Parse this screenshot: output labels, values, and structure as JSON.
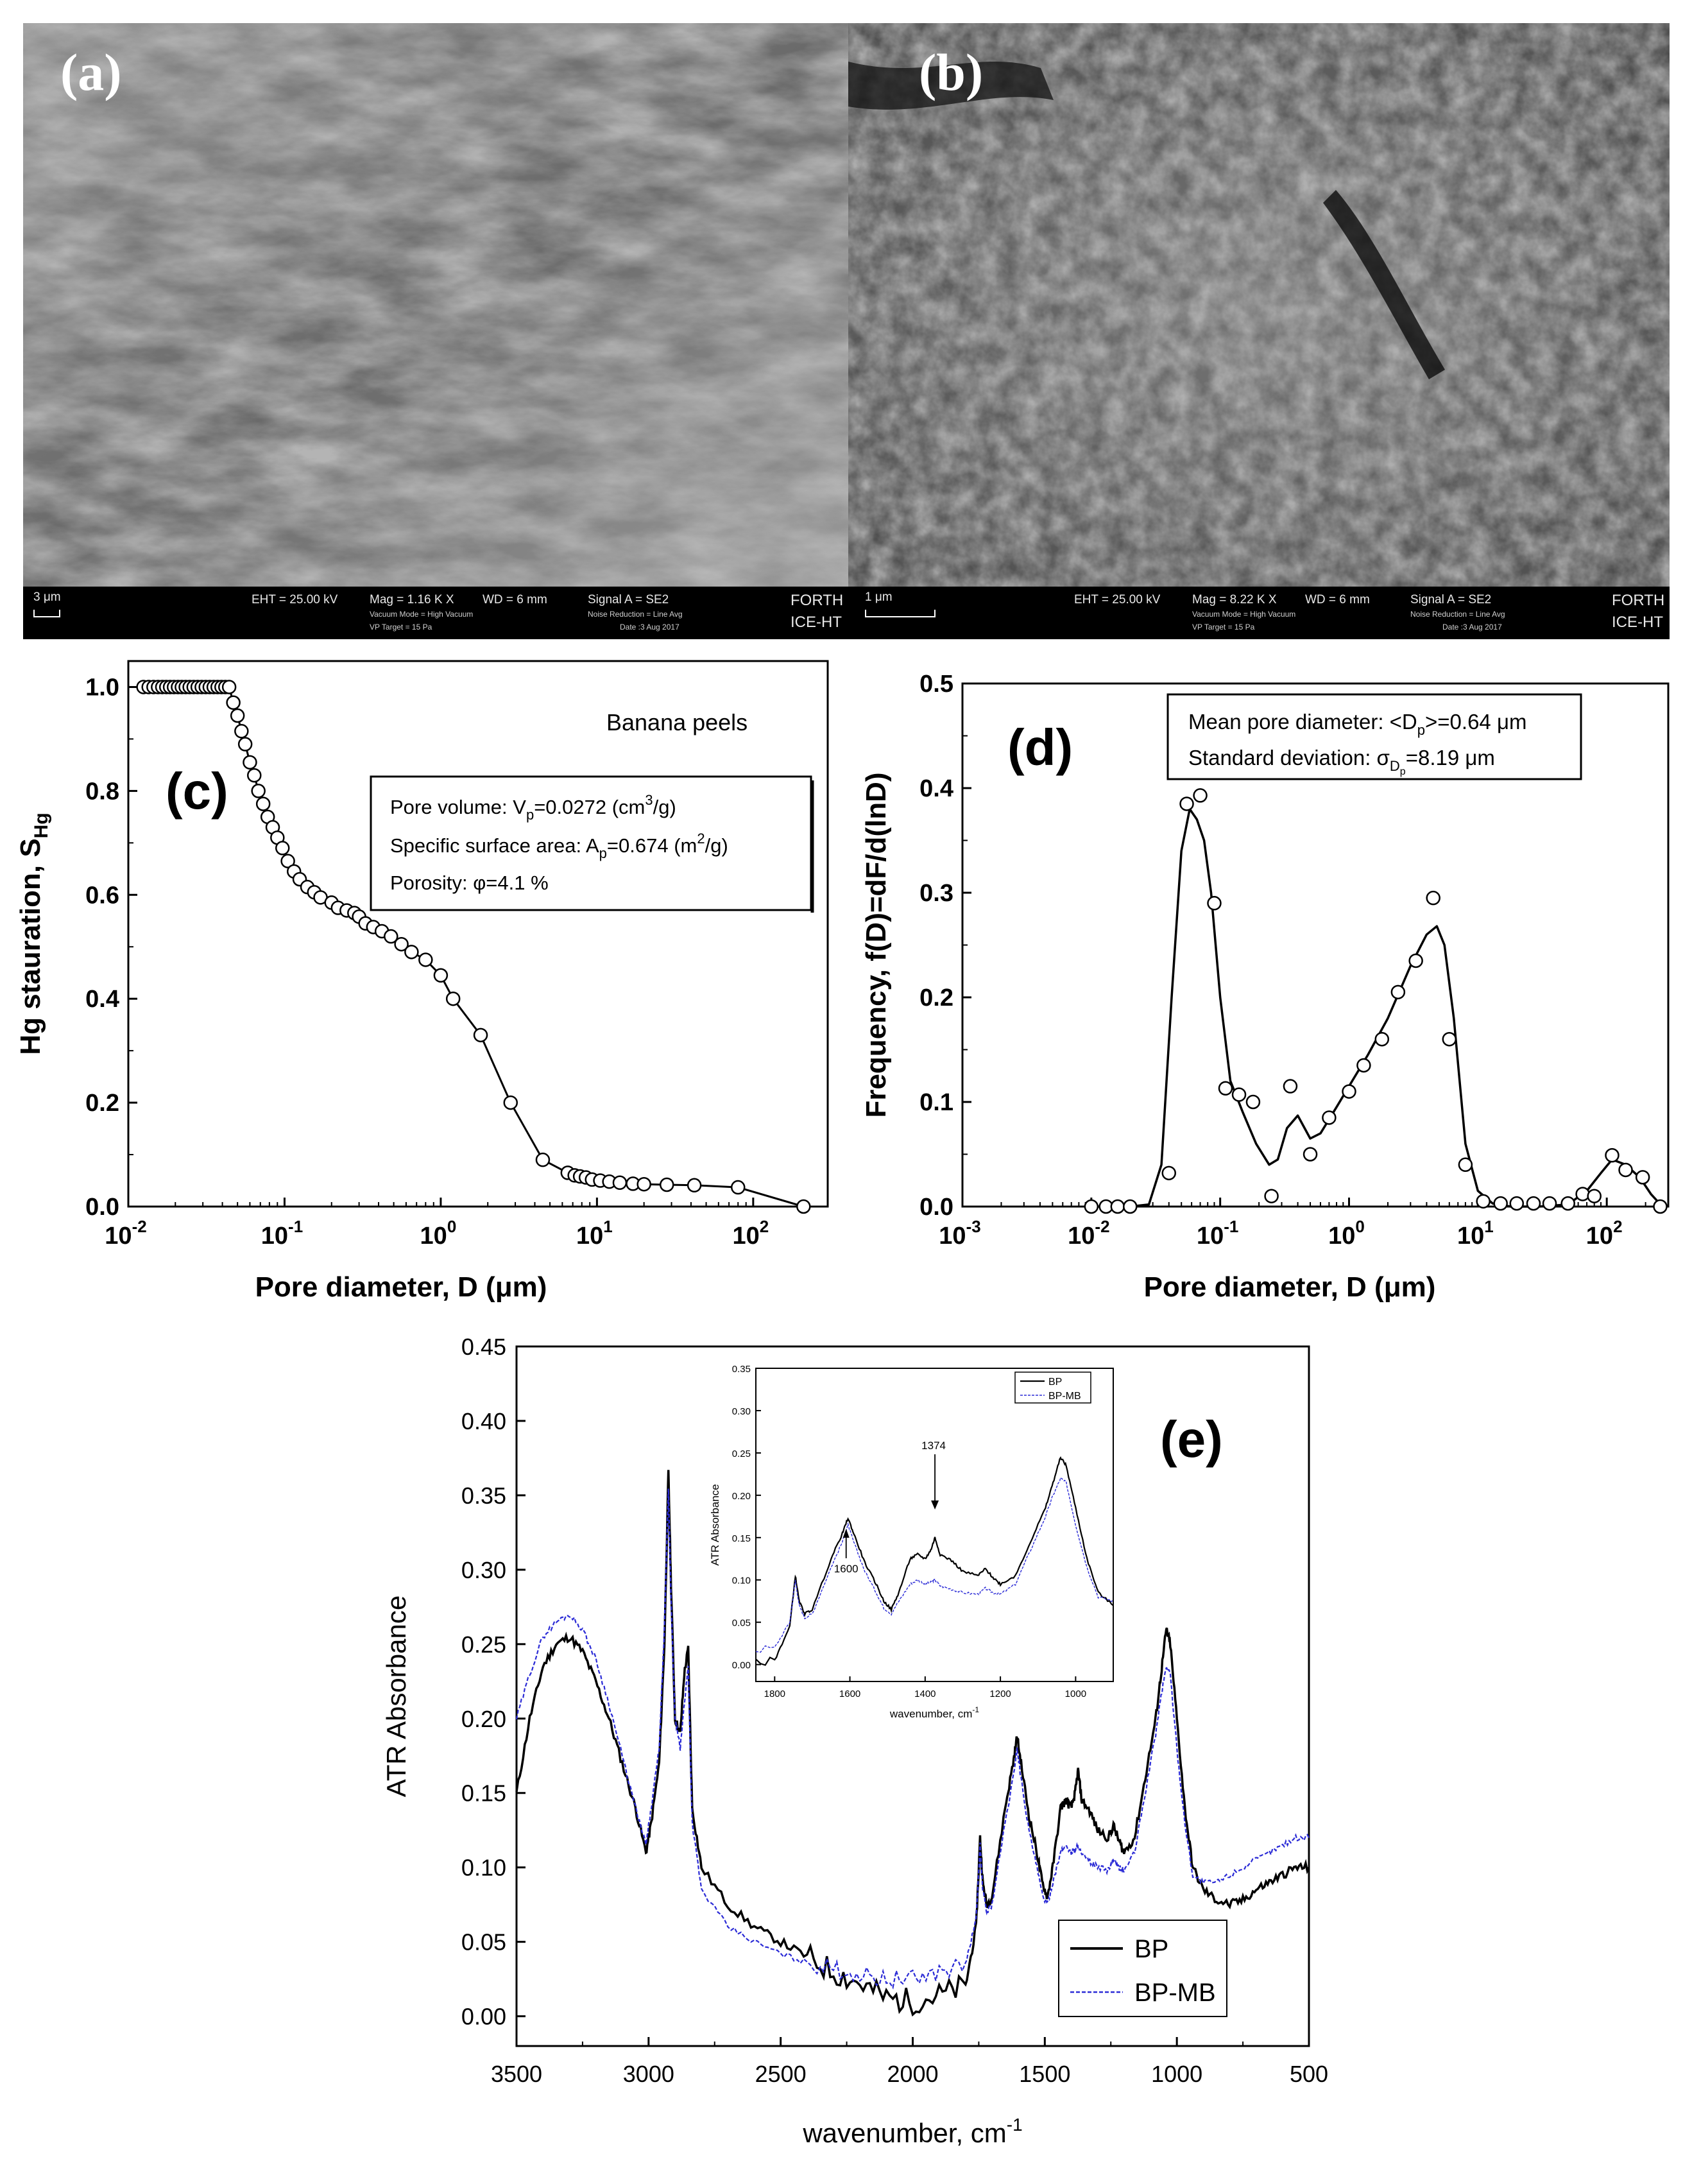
{
  "panels": {
    "a": {
      "label": "(a)",
      "scale": "3 μm",
      "eht": "EHT = 25.00 kV",
      "mag": "Mag = 1.16 K X",
      "wd": "WD = 6 mm",
      "signal": "Signal A = SE2",
      "vacuum": "Vacuum Mode = High Vacuum",
      "vp": "VP Target = 15 Pa",
      "noise": "Noise Reduction = Line Avg",
      "date": "Date :3 Aug 2017",
      "inst1": "FORTH",
      "inst2": "ICE-HT"
    },
    "b": {
      "label": "(b)",
      "scale": "1 μm",
      "eht": "EHT = 25.00 kV",
      "mag": "Mag = 8.22 K X",
      "wd": "WD = 6 mm",
      "signal": "Signal A = SE2",
      "vacuum": "Vacuum Mode = High Vacuum",
      "vp": "VP Target = 15 Pa",
      "noise": "Noise Reduction = Line Avg",
      "date": "Date :3 Aug 2017",
      "inst1": "FORTH",
      "inst2": "ICE-HT"
    }
  },
  "chart_data": [
    {
      "id": "c",
      "type": "line",
      "panel_label": "(c)",
      "xlabel": "Pore diameter, D (μm)",
      "ylabel_main": "Hg stauration, S",
      "ylabel_sub": "Hg",
      "xscale": "log",
      "xlim": [
        0.01,
        300
      ],
      "ylim": [
        0,
        1.05
      ],
      "xticks": [
        {
          "v": 0.01,
          "base": "10",
          "exp": "-2"
        },
        {
          "v": 0.1,
          "base": "10",
          "exp": "-1"
        },
        {
          "v": 1,
          "base": "10",
          "exp": "0"
        },
        {
          "v": 10,
          "base": "10",
          "exp": "1"
        },
        {
          "v": 100,
          "base": "10",
          "exp": "2"
        }
      ],
      "yticks": [
        "0.0",
        "0.2",
        "0.4",
        "0.6",
        "0.8",
        "1.0"
      ],
      "sample_label": "Banana peels",
      "legend": {
        "l1_pre": "Pore volume: V",
        "l1_sub": "p",
        "l1_mid": "=0.0272 (cm",
        "l1_sup": "3",
        "l1_post": "/g)",
        "l2_pre": "Specific surface area: A",
        "l2_sub": "p",
        "l2_mid": "=0.674 (m",
        "l2_sup": "2",
        "l2_post": "/g)",
        "l3": "Porosity: φ=4.1 %"
      },
      "x": [
        0.0125,
        0.0135,
        0.0145,
        0.0155,
        0.0165,
        0.0175,
        0.0185,
        0.0196,
        0.0208,
        0.022,
        0.0233,
        0.0247,
        0.0262,
        0.0278,
        0.0295,
        0.0313,
        0.0332,
        0.0352,
        0.0373,
        0.0395,
        0.0418,
        0.0442,
        0.047,
        0.05,
        0.053,
        0.056,
        0.06,
        0.064,
        0.068,
        0.073,
        0.078,
        0.084,
        0.09,
        0.097,
        0.105,
        0.115,
        0.125,
        0.14,
        0.155,
        0.17,
        0.2,
        0.22,
        0.25,
        0.28,
        0.3,
        0.33,
        0.37,
        0.42,
        0.48,
        0.56,
        0.65,
        0.8,
        1.0,
        1.2,
        1.8,
        2.8,
        4.5,
        6.5,
        7.2,
        7.8,
        8.5,
        9.3,
        10.5,
        12,
        14,
        17,
        20,
        28,
        42,
        80,
        210
      ],
      "y": [
        1.0,
        1.0,
        1.0,
        1.0,
        1.0,
        1.0,
        1.0,
        1.0,
        1.0,
        1.0,
        1.0,
        1.0,
        1.0,
        1.0,
        1.0,
        1.0,
        1.0,
        1.0,
        1.0,
        1.0,
        1.0,
        1.0,
        0.97,
        0.945,
        0.915,
        0.89,
        0.855,
        0.83,
        0.8,
        0.775,
        0.75,
        0.73,
        0.71,
        0.69,
        0.665,
        0.645,
        0.63,
        0.615,
        0.605,
        0.595,
        0.585,
        0.575,
        0.57,
        0.565,
        0.558,
        0.545,
        0.538,
        0.53,
        0.52,
        0.505,
        0.49,
        0.475,
        0.445,
        0.4,
        0.33,
        0.2,
        0.09,
        0.065,
        0.06,
        0.058,
        0.056,
        0.052,
        0.05,
        0.048,
        0.046,
        0.044,
        0.043,
        0.042,
        0.041,
        0.037,
        0.0
      ]
    },
    {
      "id": "d",
      "type": "line",
      "panel_label": "(d)",
      "xlabel": "Pore diameter, D (μm)",
      "ylabel": "Frequency, f(D)=dF/d(lnD)",
      "xscale": "log",
      "xlim": [
        0.001,
        300
      ],
      "ylim": [
        0,
        0.5
      ],
      "xticks": [
        {
          "v": 0.001,
          "base": "10",
          "exp": "-3"
        },
        {
          "v": 0.01,
          "base": "10",
          "exp": "-2"
        },
        {
          "v": 0.1,
          "base": "10",
          "exp": "-1"
        },
        {
          "v": 1,
          "base": "10",
          "exp": "0"
        },
        {
          "v": 10,
          "base": "10",
          "exp": "1"
        },
        {
          "v": 100,
          "base": "10",
          "exp": "2"
        }
      ],
      "yticks": [
        "0.0",
        "0.1",
        "0.2",
        "0.3",
        "0.4",
        "0.5"
      ],
      "legend": {
        "l1_pre": "Mean pore diameter: <D",
        "l1_sub": "p",
        "l1_post": ">=0.64 μm",
        "l2_pre": "Standard deviation:   σ",
        "l2_sub": "D",
        "l2_subsub": "p",
        "l2_post": "=8.19 μm"
      },
      "points": {
        "x": [
          0.01,
          0.013,
          0.016,
          0.02,
          0.04,
          0.055,
          0.07,
          0.09,
          0.11,
          0.14,
          0.18,
          0.25,
          0.35,
          0.5,
          0.7,
          1.0,
          1.3,
          1.8,
          2.4,
          3.3,
          4.5,
          6.0,
          8.0,
          11,
          15,
          20,
          27,
          36,
          50,
          65,
          80,
          110,
          140,
          190,
          260
        ],
        "y": [
          0.0,
          0.0,
          0.0,
          0.0,
          0.032,
          0.385,
          0.393,
          0.29,
          0.113,
          0.107,
          0.1,
          0.01,
          0.115,
          0.05,
          0.085,
          0.11,
          0.135,
          0.16,
          0.205,
          0.235,
          0.295,
          0.16,
          0.04,
          0.005,
          0.003,
          0.003,
          0.003,
          0.003,
          0.003,
          0.012,
          0.01,
          0.049,
          0.035,
          0.028,
          0.0
        ]
      },
      "curve": {
        "x": [
          0.01,
          0.02,
          0.028,
          0.035,
          0.042,
          0.05,
          0.058,
          0.066,
          0.075,
          0.085,
          0.1,
          0.12,
          0.15,
          0.19,
          0.24,
          0.28,
          0.33,
          0.4,
          0.5,
          0.6,
          0.8,
          1.0,
          1.4,
          2.0,
          3.0,
          4.0,
          4.8,
          5.5,
          6.5,
          8.0,
          10,
          13,
          18,
          30,
          50,
          70,
          90,
          110,
          140,
          180,
          220,
          270
        ],
        "y": [
          0.0,
          0.0,
          0.002,
          0.04,
          0.2,
          0.34,
          0.38,
          0.37,
          0.35,
          0.3,
          0.2,
          0.12,
          0.09,
          0.06,
          0.04,
          0.045,
          0.075,
          0.087,
          0.065,
          0.07,
          0.095,
          0.115,
          0.145,
          0.18,
          0.23,
          0.26,
          0.268,
          0.25,
          0.18,
          0.06,
          0.015,
          0.003,
          0.0,
          0.0,
          0.002,
          0.015,
          0.032,
          0.045,
          0.04,
          0.028,
          0.012,
          0.0
        ]
      }
    },
    {
      "id": "e",
      "type": "line",
      "panel_label": "(e)",
      "xlabel": "wavenumber, cm",
      "xlabel_sup": "-1",
      "ylabel": "ATR Absorbance",
      "xlim": [
        3500,
        500
      ],
      "ylim": [
        -0.02,
        0.45
      ],
      "xticks": [
        "3500",
        "3000",
        "2500",
        "2000",
        "1500",
        "1000",
        "500"
      ],
      "yticks": [
        "0.00",
        "0.05",
        "0.10",
        "0.15",
        "0.20",
        "0.25",
        "0.30",
        "0.35",
        "0.40",
        "0.45"
      ],
      "series": [
        {
          "name": "BP",
          "color": "#000000",
          "x": [
            3500,
            3450,
            3400,
            3350,
            3300,
            3250,
            3200,
            3150,
            3100,
            3050,
            3010,
            2990,
            2960,
            2940,
            2925,
            2915,
            2900,
            2880,
            2865,
            2850,
            2835,
            2800,
            2700,
            2600,
            2500,
            2400,
            2300,
            2200,
            2100,
            2000,
            1900,
            1800,
            1760,
            1745,
            1735,
            1720,
            1700,
            1650,
            1620,
            1605,
            1590,
            1560,
            1530,
            1510,
            1490,
            1470,
            1440,
            1420,
            1400,
            1385,
            1374,
            1360,
            1330,
            1300,
            1260,
            1240,
            1220,
            1200,
            1160,
            1120,
            1080,
            1060,
            1040,
            1025,
            1000,
            970,
            940,
            900,
            850,
            800,
            750,
            700,
            650,
            600,
            550,
            500
          ],
          "y": [
            0.15,
            0.2,
            0.235,
            0.25,
            0.255,
            0.245,
            0.225,
            0.2,
            0.17,
            0.14,
            0.11,
            0.13,
            0.17,
            0.25,
            0.365,
            0.29,
            0.2,
            0.19,
            0.23,
            0.247,
            0.14,
            0.1,
            0.075,
            0.06,
            0.05,
            0.04,
            0.03,
            0.022,
            0.012,
            0.01,
            0.014,
            0.02,
            0.06,
            0.12,
            0.09,
            0.075,
            0.08,
            0.14,
            0.17,
            0.188,
            0.17,
            0.135,
            0.11,
            0.09,
            0.08,
            0.1,
            0.14,
            0.145,
            0.14,
            0.15,
            0.165,
            0.145,
            0.138,
            0.125,
            0.12,
            0.128,
            0.118,
            0.11,
            0.12,
            0.16,
            0.2,
            0.23,
            0.26,
            0.25,
            0.2,
            0.14,
            0.1,
            0.085,
            0.078,
            0.075,
            0.078,
            0.085,
            0.09,
            0.095,
            0.1,
            0.1
          ]
        },
        {
          "name": "BP-MB",
          "color": "#2b2bd6",
          "x": [
            3500,
            3450,
            3400,
            3350,
            3300,
            3250,
            3200,
            3150,
            3100,
            3050,
            3010,
            2990,
            2960,
            2940,
            2925,
            2915,
            2900,
            2880,
            2865,
            2850,
            2835,
            2800,
            2700,
            2600,
            2500,
            2400,
            2300,
            2200,
            2100,
            2000,
            1900,
            1800,
            1760,
            1745,
            1735,
            1720,
            1700,
            1650,
            1620,
            1605,
            1590,
            1560,
            1530,
            1510,
            1490,
            1470,
            1440,
            1420,
            1400,
            1385,
            1374,
            1360,
            1330,
            1300,
            1260,
            1240,
            1220,
            1200,
            1160,
            1120,
            1080,
            1060,
            1040,
            1025,
            1000,
            970,
            940,
            900,
            850,
            800,
            750,
            700,
            650,
            600,
            550,
            500
          ],
          "y": [
            0.2,
            0.23,
            0.255,
            0.265,
            0.27,
            0.26,
            0.24,
            0.21,
            0.175,
            0.14,
            0.115,
            0.14,
            0.18,
            0.26,
            0.355,
            0.28,
            0.2,
            0.18,
            0.21,
            0.235,
            0.13,
            0.085,
            0.06,
            0.05,
            0.042,
            0.036,
            0.032,
            0.028,
            0.025,
            0.025,
            0.03,
            0.035,
            0.065,
            0.115,
            0.085,
            0.07,
            0.075,
            0.13,
            0.16,
            0.18,
            0.16,
            0.125,
            0.1,
            0.082,
            0.075,
            0.09,
            0.11,
            0.115,
            0.11,
            0.112,
            0.115,
            0.108,
            0.104,
            0.1,
            0.098,
            0.105,
            0.1,
            0.098,
            0.11,
            0.15,
            0.19,
            0.215,
            0.235,
            0.23,
            0.18,
            0.13,
            0.095,
            0.09,
            0.09,
            0.095,
            0.1,
            0.105,
            0.11,
            0.115,
            0.12,
            0.12
          ]
        }
      ],
      "inset": {
        "xlabel": "wavenumber, cm",
        "xlabel_sup": "-1",
        "ylabel": "ATR Absorbance",
        "xlim": [
          1850,
          900
        ],
        "ylim": [
          -0.02,
          0.35
        ],
        "xticks": [
          "1800",
          "1600",
          "1400",
          "1200",
          "1000"
        ],
        "yticks": [
          "0.00",
          "0.05",
          "0.10",
          "0.15",
          "0.20",
          "0.25",
          "0.30",
          "0.35"
        ],
        "annotation_1374": "1374",
        "annotation_1600": "1600",
        "legend": [
          "BP",
          "BP-MB"
        ]
      }
    }
  ]
}
